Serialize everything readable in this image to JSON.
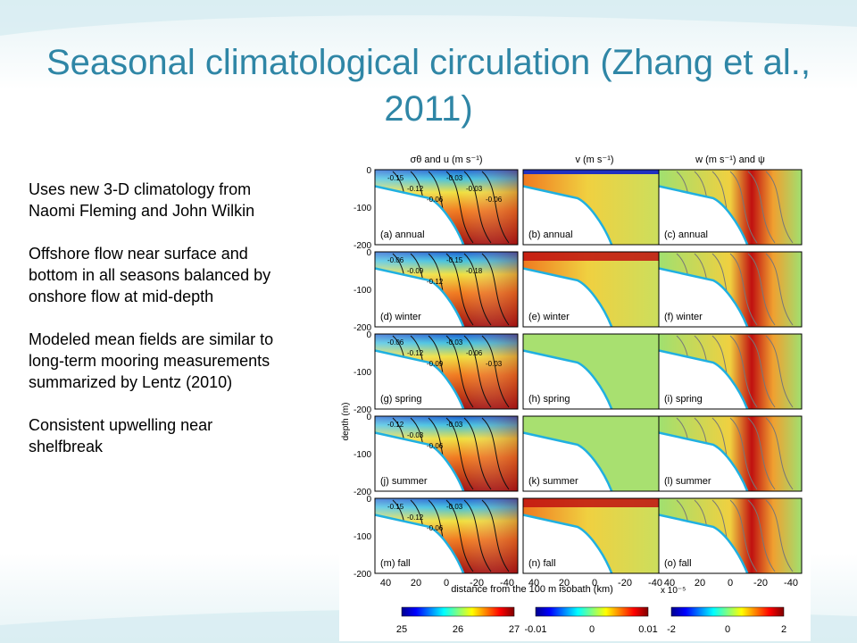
{
  "slide": {
    "title": "Seasonal climatological circulation (Zhang et al., 2011)",
    "bullets": [
      "Uses new 3-D climatology from Naomi Fleming and John Wilkin",
      "Offshore flow near surface and bottom in all seasons balanced by onshore flow at mid-depth",
      "Modeled mean fields are similar to long-term mooring measurements summarized by Lentz (2010)",
      "Consistent upwelling near shelfbreak"
    ],
    "colors": {
      "title": "#2f86a6"
    }
  },
  "figure": {
    "column_titles": [
      "σθ and u (m s⁻¹)",
      "v (m s⁻¹)",
      "w (m s⁻¹) and ψ"
    ],
    "panel_labels": [
      [
        "(a) annual",
        "(b) annual",
        "(c) annual"
      ],
      [
        "(d) winter",
        "(e) winter",
        "(f) winter"
      ],
      [
        "(g) spring",
        "(h) spring",
        "(i) spring"
      ],
      [
        "(j) summer",
        "(k) summer",
        "(l) summer"
      ],
      [
        "(m) fall",
        "(n) fall",
        "(o) fall"
      ]
    ],
    "depth_ticks": [
      "0",
      "-100",
      "-200"
    ],
    "ylabel": "depth (m)",
    "x_ticks": [
      "40",
      "20",
      "0",
      "-20",
      "-40"
    ],
    "xlabel": "distance from the 100 m isobath (km)",
    "scale_note": "x 10⁻⁵",
    "colorbars": [
      {
        "ticks": [
          "25",
          "26",
          "27"
        ]
      },
      {
        "ticks": [
          "-0.01",
          "0",
          "0.01"
        ]
      },
      {
        "ticks": [
          "-2",
          "0",
          "2"
        ]
      }
    ],
    "contour_labels": {
      "a": [
        "-0.15",
        "-0.12",
        "-0.06",
        "-0.03",
        "-0.03",
        "-0.06"
      ],
      "d": [
        "-0.06",
        "-0.09",
        "-0.12",
        "-0.15",
        "-0.18"
      ],
      "g": [
        "-0.06",
        "-0.12",
        "-0.09",
        "-0.03",
        "-0.06",
        "-0.03"
      ],
      "j": [
        "-0.12",
        "-0.03",
        "-0.06",
        "-0.03"
      ],
      "m": [
        "-0.15",
        "-0.12",
        "-0.06",
        "-0.03"
      ]
    }
  }
}
